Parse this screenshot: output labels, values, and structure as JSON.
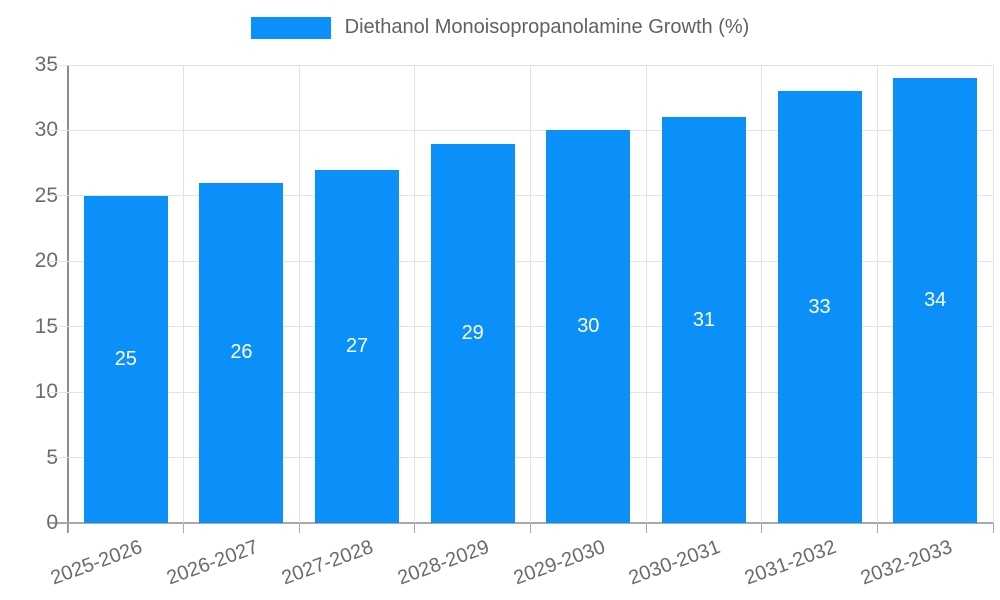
{
  "chart_data": {
    "type": "bar",
    "title": "Diethanol Monoisopropanolamine Growth (%)",
    "categories": [
      "2025-2026",
      "2026-2027",
      "2027-2028",
      "2028-2029",
      "2029-2030",
      "2030-2031",
      "2031-2032",
      "2032-2033"
    ],
    "values": [
      25,
      26,
      27,
      29,
      30,
      31,
      33,
      34
    ],
    "xlabel": "",
    "ylabel": "",
    "ylim": [
      0,
      35
    ],
    "yticks": [
      0,
      5,
      10,
      15,
      20,
      25,
      30,
      35
    ],
    "grid": true,
    "legend_position": "top-center",
    "bar_color": "#0a90f8",
    "grid_color": "#e3e3e3",
    "axis_line_color": "#8c8c8c",
    "axis_text_color": "#6b6b6b",
    "value_label_color": "#ffffff",
    "legend_text_color": "#616161"
  }
}
